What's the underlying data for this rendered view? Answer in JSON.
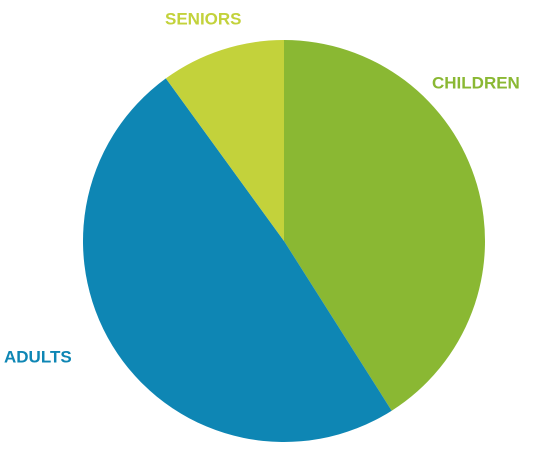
{
  "chart_data": {
    "type": "pie",
    "categories": [
      "CHILDREN",
      "ADULTS",
      "SENIORS"
    ],
    "values": [
      41,
      49,
      10
    ],
    "colors": [
      "#8ab833",
      "#0e86b4",
      "#c3d23b"
    ]
  }
}
